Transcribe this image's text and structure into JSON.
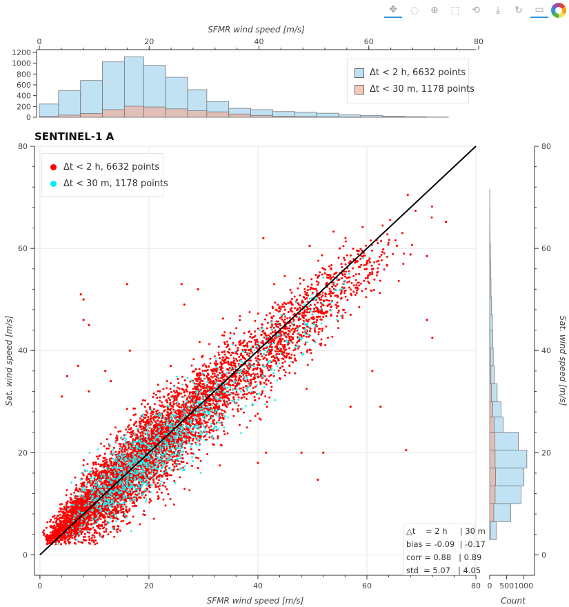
{
  "toolbar": {
    "tools": [
      {
        "name": "pan-tool-icon",
        "glyph": "✥",
        "active": true
      },
      {
        "name": "lasso-select-icon",
        "glyph": "◌",
        "active": false
      },
      {
        "name": "zoom-in-icon",
        "glyph": "⊕",
        "active": false
      },
      {
        "name": "box-select-icon",
        "glyph": "⬚",
        "active": false
      },
      {
        "name": "wheel-zoom-icon",
        "glyph": "⟲",
        "active": false
      },
      {
        "name": "save-icon",
        "glyph": "⤓",
        "active": false
      },
      {
        "name": "reset-icon",
        "glyph": "↻",
        "active": false
      },
      {
        "name": "hover-icon",
        "glyph": "▭",
        "active": true
      }
    ]
  },
  "chart_data": [
    {
      "id": "top-histogram",
      "type": "bar",
      "xlabel": "SFMR wind speed [m/s]",
      "xlim": [
        0,
        80
      ],
      "ylim": [
        0,
        1200
      ],
      "yticks": [
        0,
        200,
        400,
        600,
        800,
        1000,
        1200
      ],
      "xticks": [
        0,
        20,
        40,
        60,
        80
      ],
      "bin_edges": [
        0,
        3.5,
        7.5,
        11.5,
        15.5,
        19.0,
        23.0,
        27.0,
        30.5,
        34.5,
        38.5,
        42.5,
        46.5,
        50.5,
        54.5,
        58.5,
        62.5,
        66.5,
        70.5,
        74.5
      ],
      "series": [
        {
          "name": "Δt < 2 h, 6632 points",
          "color": "#bde0f2",
          "values": [
            245,
            490,
            680,
            1025,
            1120,
            960,
            740,
            510,
            290,
            165,
            140,
            105,
            95,
            75,
            45,
            30,
            20,
            10,
            5
          ]
        },
        {
          "name": "Δt < 30 m, 1178 points",
          "color": "#e8b7ae",
          "values": [
            15,
            40,
            70,
            140,
            205,
            190,
            155,
            120,
            100,
            60,
            35,
            20,
            12,
            8,
            5,
            3,
            2,
            1,
            0
          ]
        }
      ],
      "legend_position": "top-right"
    },
    {
      "id": "scatter",
      "type": "scatter",
      "title": "SENTINEL-1 A",
      "xlabel": "SFMR wind speed [m/s]",
      "ylabel": "Sat. wind speed [m/s]",
      "xlim": [
        -1,
        80
      ],
      "ylim": [
        -4,
        80
      ],
      "xticks": [
        0,
        20,
        40,
        60,
        80
      ],
      "yticks": [
        0,
        20,
        40,
        60,
        80
      ],
      "reference_line": {
        "from": [
          0,
          0
        ],
        "to": [
          80,
          80
        ],
        "color": "#000000"
      },
      "series": [
        {
          "name": "Δt < 2 h, 6632 points",
          "color": "#ff0000",
          "count": 6632,
          "highlight_points": [
            [
              74.5,
              65.2
            ],
            [
              67.5,
              70.5
            ],
            [
              41,
              62
            ],
            [
              49.5,
              60.5
            ],
            [
              55,
              60
            ],
            [
              58.5,
              59.5
            ],
            [
              63,
              59.8
            ],
            [
              65.5,
              60.5
            ],
            [
              71,
              58.5
            ],
            [
              68,
              58.8
            ],
            [
              60.5,
              58
            ],
            [
              60,
              57.2
            ],
            [
              71,
              46
            ],
            [
              72,
              42.5
            ],
            [
              61,
              36
            ],
            [
              57,
              29
            ],
            [
              62.5,
              29
            ],
            [
              67.2,
              20.5
            ],
            [
              52,
              20
            ],
            [
              41.5,
              20
            ],
            [
              51,
              14.7
            ],
            [
              7.5,
              51
            ],
            [
              8,
              50
            ],
            [
              8,
              46
            ],
            [
              9,
              45
            ],
            [
              16,
              53
            ],
            [
              26,
              53
            ],
            [
              29,
              52
            ],
            [
              46,
              49.5
            ],
            [
              26.5,
              49
            ],
            [
              57,
              47
            ],
            [
              7,
              37
            ],
            [
              5,
              35
            ],
            [
              13,
              34
            ],
            [
              12,
              36
            ],
            [
              16.5,
              40
            ],
            [
              43,
              53
            ],
            [
              45,
              48
            ],
            [
              4,
              31
            ],
            [
              9,
              32
            ],
            [
              22,
              32
            ],
            [
              24,
              37
            ],
            [
              48,
              20
            ],
            [
              33,
              17.5
            ],
            [
              29,
              17
            ],
            [
              40,
              18
            ]
          ],
          "clusters": [
            {
              "cx": 6,
              "cy": 7,
              "sx": 2.2,
              "sy": 2.5,
              "n": 900
            },
            {
              "cx": 12,
              "cy": 12,
              "sx": 3.5,
              "sy": 4.5,
              "n": 1500
            },
            {
              "cx": 20,
              "cy": 20,
              "sx": 4.5,
              "sy": 5,
              "n": 1700
            },
            {
              "cx": 30,
              "cy": 30,
              "sx": 5,
              "sy": 5,
              "n": 1200
            },
            {
              "cx": 44,
              "cy": 42,
              "sx": 5,
              "sy": 5,
              "n": 700
            },
            {
              "cx": 56,
              "cy": 53,
              "sx": 5,
              "sy": 4,
              "n": 300
            },
            {
              "cx": 3,
              "cy": 4,
              "sx": 0.8,
              "sy": 0.8,
              "n": 150
            }
          ]
        },
        {
          "name": "Δt < 30 m, 1178 points",
          "color": "#22eaea",
          "count": 1178,
          "clusters": [
            {
              "cx": 14,
              "cy": 14,
              "sx": 4,
              "sy": 4,
              "n": 420
            },
            {
              "cx": 21,
              "cy": 20,
              "sx": 4.5,
              "sy": 4.5,
              "n": 420
            },
            {
              "cx": 31,
              "cy": 29,
              "sx": 5,
              "sy": 4.5,
              "n": 200
            },
            {
              "cx": 43,
              "cy": 40,
              "sx": 5,
              "sy": 4,
              "n": 110
            },
            {
              "cx": 52,
              "cy": 50,
              "sx": 3,
              "sy": 3,
              "n": 28
            }
          ]
        }
      ],
      "legend_position": "top-left"
    },
    {
      "id": "right-histogram",
      "type": "bar",
      "orientation": "horizontal",
      "xlabel": "Count",
      "ylabel": "Sat. wind speed [m/s]",
      "xlim": [
        0,
        1200
      ],
      "xticks": [
        0,
        500,
        1000
      ],
      "ylim": [
        -4,
        80
      ],
      "yticks": [
        0,
        20,
        40,
        60,
        80
      ],
      "bin_edges": [
        3,
        6.5,
        10,
        13.5,
        17,
        20.5,
        24,
        27,
        30,
        33.5,
        37,
        40.5,
        44,
        47,
        50.5,
        54,
        57.5,
        61,
        64.5,
        68,
        71.5
      ],
      "series": [
        {
          "name": "Δt < 2 h, 6632 points",
          "color": "#bde0f2",
          "values": [
            190,
            620,
            925,
            1010,
            1095,
            845,
            395,
            335,
            220,
            135,
            105,
            90,
            80,
            55,
            40,
            30,
            20,
            10,
            5,
            3
          ]
        },
        {
          "name": "Δt < 30 m, 1178 points",
          "color": "#e8b7ae",
          "values": [
            20,
            120,
            160,
            175,
            160,
            150,
            130,
            90,
            55,
            35,
            20,
            10,
            5,
            3,
            1,
            0,
            0,
            0,
            0,
            0
          ]
        }
      ]
    }
  ],
  "legend_top": {
    "items": [
      {
        "label": "Δt < 2 h, 6632 points",
        "color": "#bde0f2"
      },
      {
        "label": "Δt < 30 m, 1178 points",
        "color": "#f9c9bd"
      }
    ]
  },
  "legend_main": {
    "items": [
      {
        "label": "Δt < 2 h, 6632 points",
        "color": "#ff0000"
      },
      {
        "label": "Δt < 30 m, 1178 points",
        "color": "#00eeee"
      }
    ]
  },
  "stats": {
    "line1": "△t    = 2 h     | 30 m",
    "line2": "bias = -0.09  | -0.17",
    "line3": "corr = 0.88   | 0.89",
    "line4": "std  = 5.07   | 4.05"
  }
}
